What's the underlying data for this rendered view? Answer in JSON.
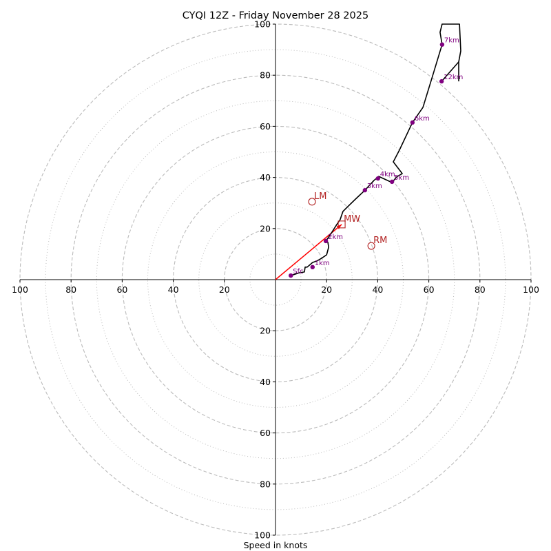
{
  "chart_data": {
    "type": "line",
    "subtype": "hodograph",
    "title": "CYQI 12Z - Friday November 28 2025",
    "xlabel": "Speed in knots",
    "ylabel": "",
    "xlim": [
      -100,
      100
    ],
    "ylim": [
      -100,
      100
    ],
    "x_tick_labels": [
      "100",
      "80",
      "60",
      "40",
      "20",
      "",
      "20",
      "40",
      "60",
      "80",
      "100"
    ],
    "x_tick_values": [
      -100,
      -80,
      -60,
      -40,
      -20,
      0,
      20,
      40,
      60,
      80,
      100
    ],
    "y_tick_labels": [
      "100",
      "80",
      "60",
      "40",
      "20",
      "",
      "20",
      "40",
      "60",
      "80",
      "100"
    ],
    "y_tick_values": [
      100,
      80,
      60,
      40,
      20,
      0,
      -20,
      -40,
      -60,
      -80,
      -100
    ],
    "rings_major": [
      20,
      40,
      60,
      80,
      100
    ],
    "rings_minor": [
      10,
      30,
      50,
      70,
      90
    ],
    "grid": true,
    "colors": {
      "hodograph_line": "#000000",
      "height_markers": "#800080",
      "storm_motion": "#b22222",
      "shear_vector": "#ff0000",
      "grid": "#bbbbbb",
      "axes": "#000000"
    },
    "hodograph": {
      "u": [
        6.0,
        9.4,
        11.3,
        11.6,
        12.4,
        14.5,
        16.2,
        18.1,
        20.0,
        20.8,
        20.5,
        19.7,
        21.6,
        24.0,
        25.3,
        26.4,
        28.3,
        31.3,
        35.0,
        38.5,
        40.4,
        45.6,
        47.4,
        49.6,
        46.1,
        48.5,
        53.6,
        57.7,
        61.5,
        65.2,
        64.4,
        65.2,
        72.0,
        72.5,
        71.7,
        71.7
      ],
      "v": [
        1.6,
        2.7,
        3.0,
        4.9,
        4.9,
        6.7,
        7.3,
        8.4,
        9.7,
        12.7,
        14.6,
        15.1,
        17.8,
        21.6,
        23.5,
        26.7,
        28.6,
        31.5,
        35.0,
        38.8,
        40.4,
        38.0,
        40.2,
        41.5,
        46.1,
        50.7,
        61.5,
        67.4,
        79.8,
        92.0,
        96.8,
        100.0,
        100.0,
        89.5,
        85.2,
        77.6
      ],
      "connector": {
        "u": [
          71.7,
          65.0
        ],
        "v": [
          85.2,
          77.6
        ]
      }
    },
    "height_markers": [
      {
        "label": "Sfc",
        "u": 6.0,
        "v": 1.6
      },
      {
        "label": "1km",
        "u": 14.5,
        "v": 4.9
      },
      {
        "label": "2km",
        "u": 19.7,
        "v": 15.1
      },
      {
        "label": "3km",
        "u": 35.0,
        "v": 35.0
      },
      {
        "label": "4km",
        "u": 40.1,
        "v": 39.6
      },
      {
        "label": "5km",
        "u": 45.6,
        "v": 38.3
      },
      {
        "label": "6km",
        "u": 53.6,
        "v": 61.5
      },
      {
        "label": "7km",
        "u": 65.2,
        "v": 92.0
      },
      {
        "label": "12km",
        "u": 65.0,
        "v": 77.6
      }
    ],
    "storm_motions": [
      {
        "label": "LM",
        "marker": "circle",
        "u": 14.3,
        "v": 30.5
      },
      {
        "label": "MW",
        "marker": "square",
        "u": 25.9,
        "v": 21.6
      },
      {
        "label": "RM",
        "marker": "circle",
        "u": 37.5,
        "v": 13.2
      }
    ],
    "shear_vector": {
      "from_u": 0,
      "from_v": 0,
      "to_u": 25.9,
      "to_v": 21.6
    }
  }
}
